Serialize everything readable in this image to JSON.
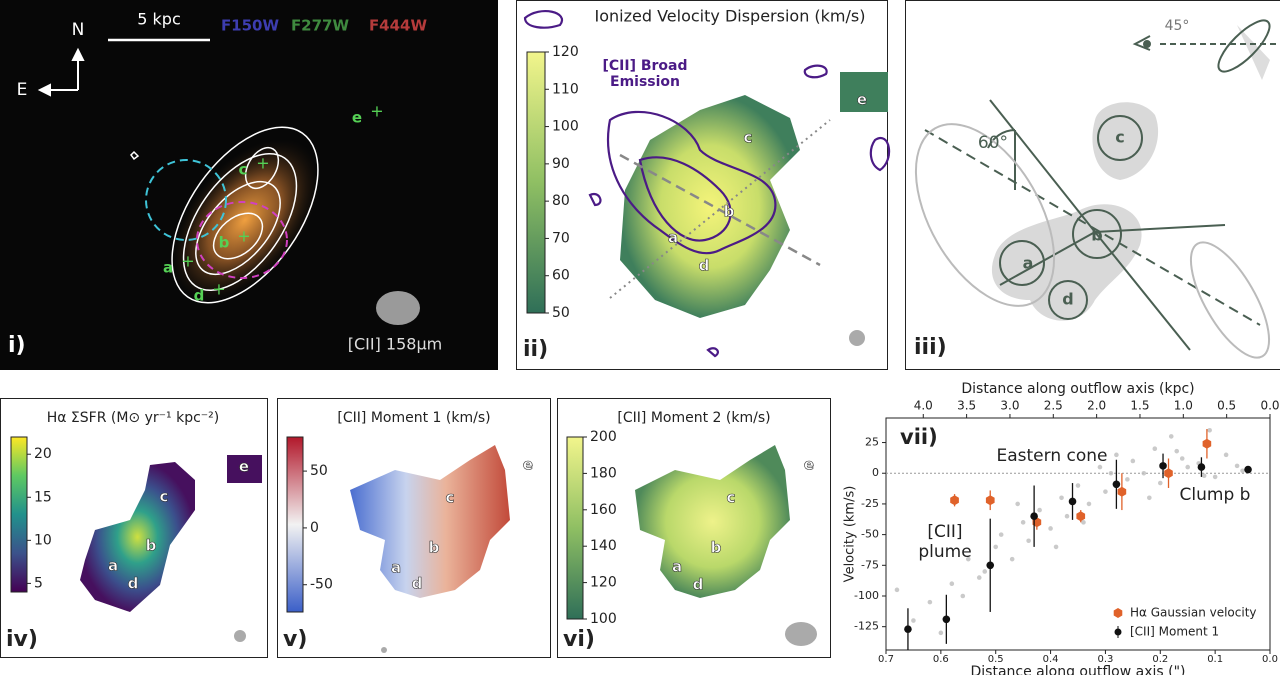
{
  "panels": [
    {
      "label": "i)",
      "scale_bar": "5 kpc",
      "north": "N",
      "east": "E",
      "filters": [
        {
          "name": "F150W",
          "color": "#3d3db0"
        },
        {
          "name": "F277W",
          "color": "#3f8a3f"
        },
        {
          "name": "F444W",
          "color": "#b53b3b"
        }
      ],
      "beam": "[CII] 158μm",
      "clumps": [
        "a",
        "b",
        "c",
        "d",
        "e"
      ]
    },
    {
      "label": "ii)",
      "title": "Ionized Velocity Dispersion (km/s)",
      "contour_label": "[CII] Broad Emission",
      "clumps": [
        "a",
        "b",
        "c",
        "d",
        "e"
      ],
      "colorbar": {
        "cmap": "summer",
        "clim": [
          50,
          120
        ],
        "ticks": [
          50,
          60,
          70,
          80,
          90,
          100,
          110,
          120
        ]
      }
    },
    {
      "label": "iii)",
      "angles": [
        "45°",
        "60°"
      ],
      "clumps": [
        "a",
        "b",
        "c",
        "d"
      ]
    },
    {
      "label": "iv)",
      "title": "Hα ΣSFR (M⊙ yr⁻¹ kpc⁻²)",
      "clumps": [
        "a",
        "b",
        "c",
        "d",
        "e"
      ],
      "colorbar": {
        "cmap": "viridis",
        "clim": [
          4,
          22
        ],
        "ticks": [
          5,
          10,
          15,
          20
        ]
      }
    },
    {
      "label": "v)",
      "title": "[CII] Moment 1 (km/s)",
      "clumps": [
        "a",
        "b",
        "c",
        "d",
        "e"
      ],
      "colorbar": {
        "cmap": "RdBu",
        "clim": [
          -74,
          80
        ],
        "ticks": [
          -50,
          0,
          50
        ]
      }
    },
    {
      "label": "vi)",
      "title": "[CII] Moment 2 (km/s)",
      "clumps": [
        "a",
        "b",
        "c",
        "d",
        "e"
      ],
      "colorbar": {
        "cmap": "summer",
        "clim": [
          100,
          200
        ],
        "ticks": [
          100,
          120,
          140,
          160,
          180,
          200
        ]
      }
    }
  ],
  "chart_data": {
    "type": "scatter",
    "panel_label": "vii)",
    "x_label": "Distance along outflow axis (\")",
    "x2_label": "Distance along outflow axis (kpc)",
    "y_label": "Velocity (km/s)",
    "xlim": [
      0.7,
      0.0
    ],
    "xticks": [
      0.7,
      0.6,
      0.5,
      0.4,
      0.3,
      0.2,
      0.1,
      {
        "value": 0,
        "label": "0.0"
      }
    ],
    "x2lim": [
      4.43,
      0.0
    ],
    "x2ticks": [
      {
        "value": 4,
        "label": "4.0"
      },
      3.5,
      {
        "value": 3,
        "label": "3.0"
      },
      2.5,
      {
        "value": 2,
        "label": "2.0"
      },
      1.5,
      {
        "value": 1,
        "label": "1.0"
      },
      0.5,
      {
        "value": 0,
        "label": "0.0"
      }
    ],
    "ylim": [
      -144,
      45
    ],
    "yticks": [
      25,
      0,
      -25,
      -50,
      -75,
      -100,
      -125
    ],
    "annotations": [
      "Eastern cone",
      "Clump b",
      "[CII] plume"
    ],
    "legend": "lower right",
    "series": [
      {
        "color": "#bdbdbd",
        "x": [
          0.68,
          0.65,
          0.62,
          0.6,
          0.58,
          0.56,
          0.55,
          0.53,
          0.5,
          0.49,
          0.47,
          0.45,
          0.44,
          0.42,
          0.4,
          0.38,
          0.37,
          0.35,
          0.33,
          0.31,
          0.3,
          0.28,
          0.26,
          0.25,
          0.23,
          0.21,
          0.2,
          0.18,
          0.16,
          0.15,
          0.13,
          0.11,
          0.1,
          0.08,
          0.06,
          0.05,
          0.52,
          0.46,
          0.39,
          0.34,
          0.29,
          0.22,
          0.17,
          0.12
        ],
        "values": [
          -95,
          -120,
          -105,
          -130,
          -90,
          -100,
          -70,
          -85,
          -60,
          -50,
          -70,
          -40,
          -55,
          -30,
          -45,
          -20,
          -35,
          -10,
          -25,
          5,
          -15,
          15,
          -5,
          10,
          0,
          20,
          -8,
          30,
          12,
          5,
          8,
          35,
          -3,
          15,
          6,
          2,
          -80,
          -25,
          -60,
          -40,
          0,
          -20,
          18,
          -2
        ]
      },
      {
        "name": "Hα Gaussian velocity",
        "color": "#e0622a",
        "x": [
          0.575,
          0.51,
          0.425,
          0.345,
          0.27,
          0.185,
          0.115
        ],
        "values": [
          -22,
          -22,
          -40,
          -35,
          -15,
          0,
          24
        ],
        "errors": [
          5,
          8,
          6,
          5,
          15,
          12,
          12
        ]
      },
      {
        "name": "[CII] Moment 1",
        "color": "#111111",
        "x": [
          0.66,
          0.59,
          0.51,
          0.43,
          0.36,
          0.28,
          0.195,
          0.125,
          0.04
        ],
        "values": [
          -127,
          -119,
          -75,
          -35,
          -23,
          -9,
          6,
          5,
          3
        ],
        "errors": [
          17,
          20,
          38,
          25,
          15,
          20,
          10,
          8,
          2
        ]
      }
    ]
  }
}
